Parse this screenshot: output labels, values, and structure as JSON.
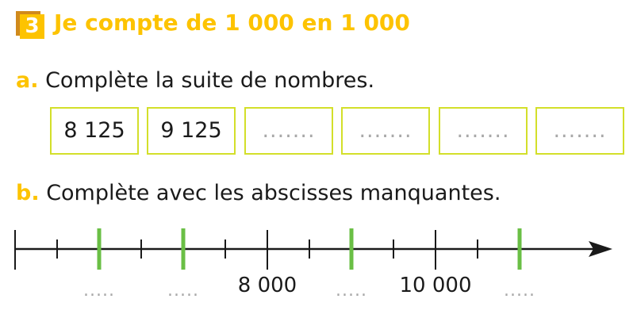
{
  "exercise": {
    "number": "3",
    "title": "Je compte de 1 000 en 1 000"
  },
  "part_a": {
    "letter": "a.",
    "instruction": "Complète la suite de nombres.",
    "boxes": [
      "8 125",
      "9 125",
      ".......",
      ".......",
      ".......",
      "......."
    ]
  },
  "part_b": {
    "letter": "b.",
    "instruction": "Complète avec les abscisses manquantes.",
    "labels": [
      {
        "tick": 2,
        "text": "....."
      },
      {
        "tick": 4,
        "text": "....."
      },
      {
        "tick": 6,
        "text": "8 000"
      },
      {
        "tick": 8,
        "text": "....."
      },
      {
        "tick": 10,
        "text": "10 000"
      },
      {
        "tick": 12,
        "text": "....."
      }
    ],
    "highlighted_ticks": [
      2,
      4,
      8,
      12
    ],
    "major_ticks": [
      0,
      6,
      10
    ],
    "colors": {
      "highlight": "#6abf45",
      "axis": "#1a1a1a",
      "box_border": "#d3df2a",
      "accent": "#fdc300"
    }
  }
}
